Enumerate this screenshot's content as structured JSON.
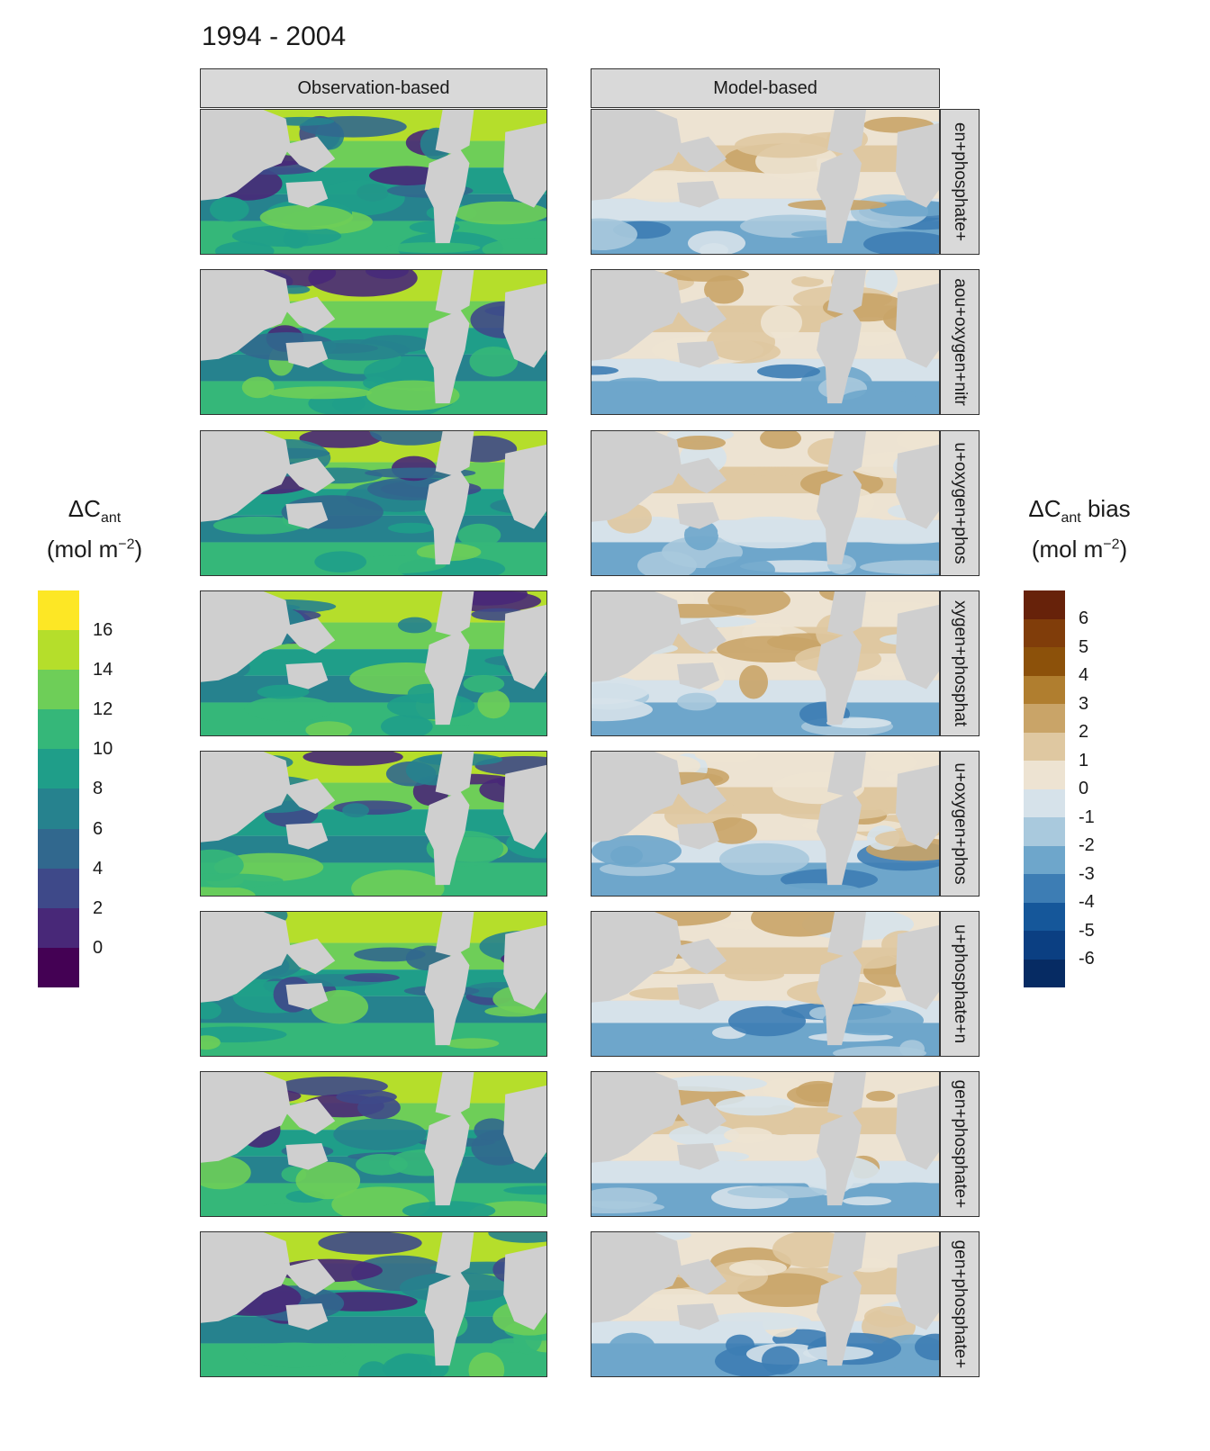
{
  "title": "1994 - 2004",
  "columns": [
    "Observation-based",
    "Model-based"
  ],
  "row_labels": [
    "en+phosphate+",
    "aou+oxygen+nitr",
    "u+oxygen+phos",
    "xygen+phosphat",
    "u+oxygen+phos",
    "u+phosphate+n",
    "gen+phosphate+",
    "gen+phosphate+"
  ],
  "legend_left": {
    "title_main": "ΔC",
    "title_sub": "ant",
    "unit_a": "(mol m",
    "unit_sup": "−2",
    "unit_b": ")",
    "ticks": [
      "16",
      "14",
      "12",
      "10",
      "8",
      "6",
      "4",
      "2",
      "0"
    ],
    "colors": [
      "#fde725",
      "#b5de2b",
      "#6ece58",
      "#35b779",
      "#1f9e89",
      "#26828e",
      "#31688e",
      "#3e4989",
      "#482878",
      "#440154"
    ]
  },
  "legend_right": {
    "title_main": "ΔC",
    "title_sub": "ant",
    "title_tail": " bias",
    "unit_a": "(mol m",
    "unit_sup": "−2",
    "unit_b": ")",
    "ticks": [
      "6",
      "5",
      "4",
      "3",
      "2",
      "1",
      "0",
      "-1",
      "-2",
      "-3",
      "-4",
      "-5",
      "-6"
    ],
    "colors": [
      "#67220a",
      "#803d0a",
      "#8c510a",
      "#b07e2f",
      "#c9a468",
      "#dfc8a1",
      "#ede3d2",
      "#d6e2ea",
      "#a9c9dd",
      "#6ea6cb",
      "#3d7db4",
      "#15579a",
      "#0b3f82",
      "#062b63"
    ]
  },
  "chart_data": {
    "type": "heatmap",
    "title": "1994 - 2004",
    "panels_per_row": [
      "Observation-based",
      "Model-based"
    ],
    "rows": 8,
    "colorbars": [
      {
        "label": "ΔCant (mol m−2)",
        "ticks": [
          0,
          2,
          4,
          6,
          8,
          10,
          12,
          14,
          16
        ],
        "range": [
          -1,
          18
        ],
        "palette": "viridis"
      },
      {
        "label": "ΔCant bias (mol m−2)",
        "ticks": [
          -6,
          -5,
          -4,
          -3,
          -2,
          -1,
          0,
          1,
          2,
          3,
          4,
          5,
          6
        ],
        "range": [
          -6.5,
          7
        ],
        "palette": "BrBG-reversed"
      }
    ]
  }
}
